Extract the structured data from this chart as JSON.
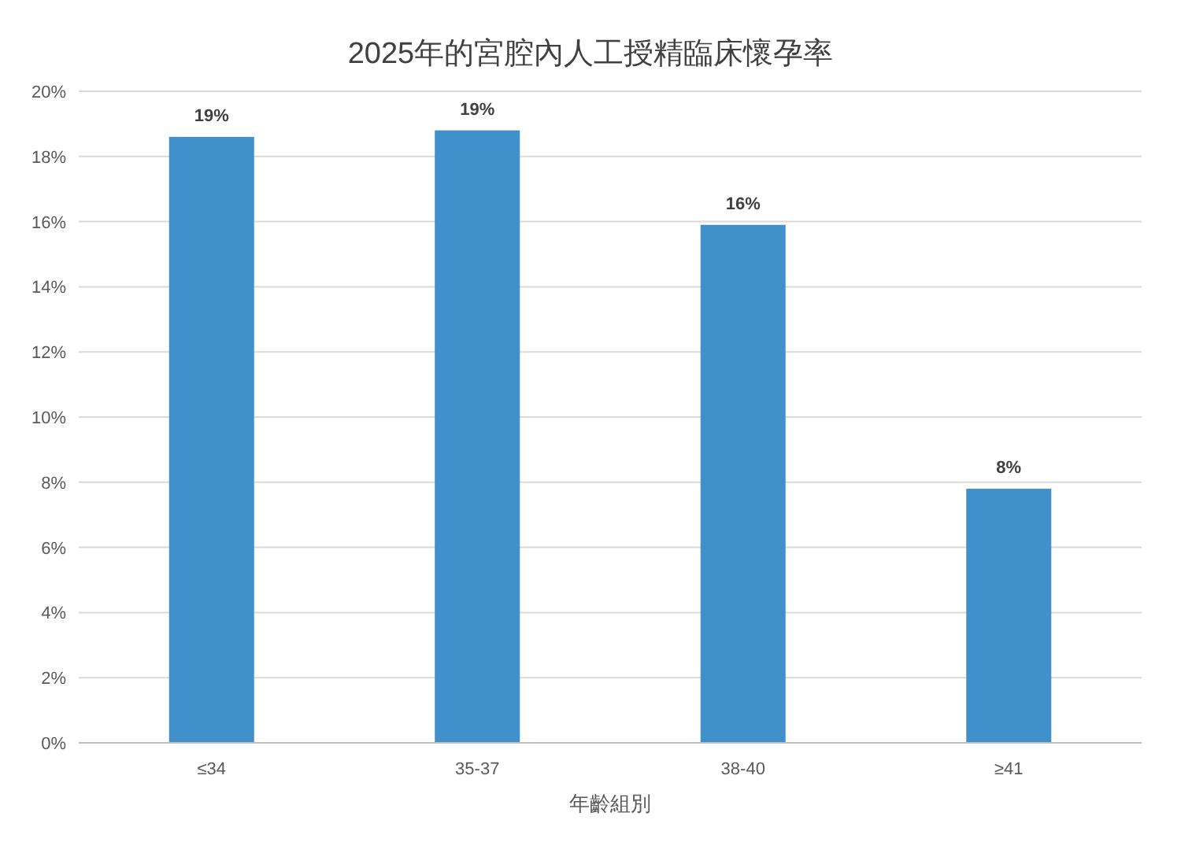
{
  "chart_data": {
    "type": "bar",
    "title": "2025年的宮腔內人工授精臨床懷孕率",
    "xlabel": "年齡組別",
    "categories": [
      "≤34",
      "35-37",
      "38-40",
      "≥41"
    ],
    "values": [
      18.6,
      18.8,
      15.9,
      7.8
    ],
    "value_labels": [
      "19%",
      "19%",
      "16%",
      "8%"
    ],
    "color": "#3f90cb",
    "ylim": [
      0,
      20
    ],
    "yticks": [
      {
        "value": 0,
        "label": "0%"
      },
      {
        "value": 2,
        "label": "2%"
      },
      {
        "value": 4,
        "label": "4%"
      },
      {
        "value": 6,
        "label": "6%"
      },
      {
        "value": 8,
        "label": "8%"
      },
      {
        "value": 10,
        "label": "10%"
      },
      {
        "value": 12,
        "label": "12%"
      },
      {
        "value": 14,
        "label": "14%"
      },
      {
        "value": 16,
        "label": "16%"
      },
      {
        "value": 18,
        "label": "18%"
      },
      {
        "value": 20,
        "label": "20%"
      }
    ],
    "grid": "y"
  }
}
